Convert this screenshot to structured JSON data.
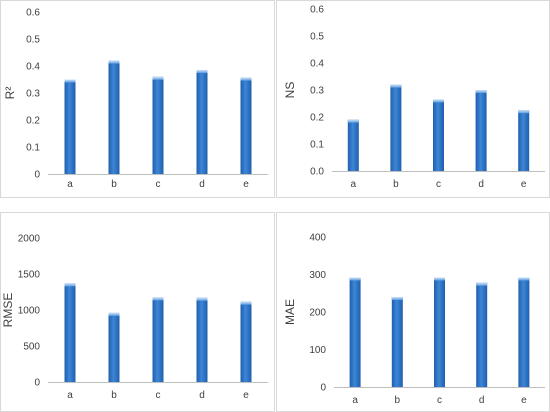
{
  "chart_data": [
    {
      "type": "bar",
      "ylabel": "R²",
      "categories": [
        "a",
        "b",
        "c",
        "d",
        "e"
      ],
      "values": [
        0.35,
        0.42,
        0.36,
        0.385,
        0.357
      ],
      "ylim": [
        0,
        0.6
      ],
      "yticks": [
        0,
        0.1,
        0.2,
        0.3,
        0.4,
        0.5,
        0.6
      ],
      "ytick_labels": [
        "0",
        "0.1",
        "0.2",
        "0.3",
        "0.4",
        "0.5",
        "0.6"
      ],
      "grid": false,
      "bar_color": "#2e75c7"
    },
    {
      "type": "bar",
      "ylabel": "NS",
      "categories": [
        "a",
        "b",
        "c",
        "d",
        "e"
      ],
      "values": [
        0.19,
        0.32,
        0.265,
        0.3,
        0.225
      ],
      "ylim": [
        0,
        0.6
      ],
      "yticks": [
        0,
        0.1,
        0.2,
        0.3,
        0.4,
        0.5,
        0.6
      ],
      "ytick_labels": [
        "0.0",
        "0.1",
        "0.2",
        "0.3",
        "0.4",
        "0.5",
        "0.6"
      ],
      "grid": false,
      "bar_color": "#2e75c7"
    },
    {
      "type": "bar",
      "ylabel": "RMSE",
      "categories": [
        "a",
        "b",
        "c",
        "d",
        "e"
      ],
      "values": [
        1370,
        960,
        1175,
        1170,
        1115
      ],
      "ylim": [
        0,
        2000
      ],
      "yticks": [
        0,
        500,
        1000,
        1500,
        2000
      ],
      "ytick_labels": [
        "0",
        "500",
        "1000",
        "1500",
        "2000"
      ],
      "grid": false,
      "bar_color": "#2e75c7"
    },
    {
      "type": "bar",
      "ylabel": "MAE",
      "categories": [
        "a",
        "b",
        "c",
        "d",
        "e"
      ],
      "values": [
        292,
        240,
        292,
        278,
        292
      ],
      "ylim": [
        0,
        400
      ],
      "yticks": [
        0,
        100,
        200,
        300,
        400
      ],
      "ytick_labels": [
        "0",
        "100",
        "200",
        "300",
        "400"
      ],
      "grid": false,
      "bar_color": "#2e75c7"
    }
  ]
}
